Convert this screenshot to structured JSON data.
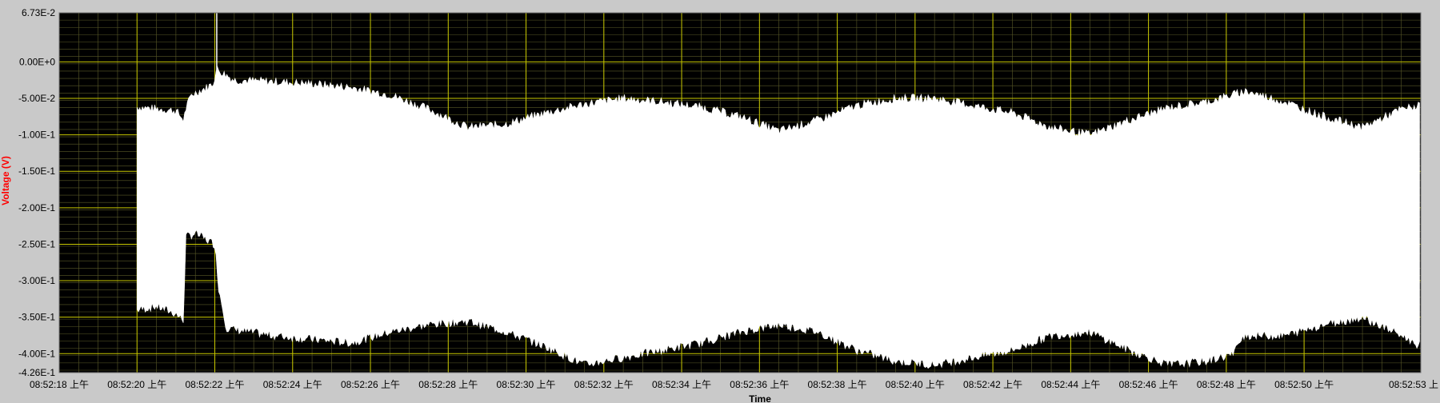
{
  "chart_data": {
    "type": "area",
    "xlabel": "Time",
    "ylabel": "Voltage (V)",
    "xlim": [
      "08:52:18",
      "08:52:53"
    ],
    "ylim": [
      -0.426,
      0.0673
    ],
    "y_min_label": "-4.26E-1",
    "y_max_label": "6.73E-2",
    "y_ticks": [
      {
        "value": 0.0,
        "label": "0.00E+0"
      },
      {
        "value": -0.05,
        "label": "-5.00E-2"
      },
      {
        "value": -0.1,
        "label": "-1.00E-1"
      },
      {
        "value": -0.15,
        "label": "-1.50E-1"
      },
      {
        "value": -0.2,
        "label": "-2.00E-1"
      },
      {
        "value": -0.25,
        "label": "-2.50E-1"
      },
      {
        "value": -0.3,
        "label": "-3.00E-1"
      },
      {
        "value": -0.35,
        "label": "-3.50E-1"
      },
      {
        "value": -0.4,
        "label": "-4.00E-1"
      }
    ],
    "x_ticks": [
      {
        "value": 0,
        "label": "08:52:18 上午"
      },
      {
        "value": 2,
        "label": "08:52:20 上午"
      },
      {
        "value": 4,
        "label": "08:52:22 上午"
      },
      {
        "value": 6,
        "label": "08:52:24 上午"
      },
      {
        "value": 8,
        "label": "08:52:26 上午"
      },
      {
        "value": 10,
        "label": "08:52:28 上午"
      },
      {
        "value": 12,
        "label": "08:52:30 上午"
      },
      {
        "value": 14,
        "label": "08:52:32 上午"
      },
      {
        "value": 16,
        "label": "08:52:34 上午"
      },
      {
        "value": 18,
        "label": "08:52:36 上午"
      },
      {
        "value": 20,
        "label": "08:52:38 上午"
      },
      {
        "value": 22,
        "label": "08:52:40 上午"
      },
      {
        "value": 24,
        "label": "08:52:42 上午"
      },
      {
        "value": 26,
        "label": "08:52:44 上午"
      },
      {
        "value": 28,
        "label": "08:52:46 上午"
      },
      {
        "value": 30,
        "label": "08:52:48 上午"
      },
      {
        "value": 32,
        "label": "08:52:50 上午"
      },
      {
        "value": 35,
        "label": "08:52:53 上"
      }
    ],
    "grid": true,
    "colors": {
      "background": "#000000",
      "trace": "#ffffff",
      "major_grid": "#c8c800",
      "minor_grid": "#5a5a28",
      "axis_title": "#ff0000"
    },
    "series": [
      {
        "values_upper": [
          [
            2.0,
            -0.062
          ],
          [
            3.0,
            -0.067
          ],
          [
            3.2,
            -0.08
          ],
          [
            3.25,
            -0.065
          ],
          [
            3.4,
            -0.045
          ],
          [
            3.8,
            -0.035
          ],
          [
            3.95,
            -0.03
          ],
          [
            4.05,
            -0.01
          ],
          [
            4.5,
            -0.025
          ],
          [
            5.5,
            -0.027
          ],
          [
            6.5,
            -0.03
          ],
          [
            7.5,
            -0.035
          ],
          [
            8.5,
            -0.045
          ],
          [
            9.5,
            -0.065
          ],
          [
            10.5,
            -0.09
          ],
          [
            11.5,
            -0.085
          ],
          [
            12.5,
            -0.07
          ],
          [
            13.5,
            -0.058
          ],
          [
            14.5,
            -0.05
          ],
          [
            15.5,
            -0.055
          ],
          [
            16.5,
            -0.062
          ],
          [
            17.5,
            -0.075
          ],
          [
            18.5,
            -0.095
          ],
          [
            19.5,
            -0.08
          ],
          [
            20.5,
            -0.06
          ],
          [
            21.5,
            -0.05
          ],
          [
            22.5,
            -0.05
          ],
          [
            23.5,
            -0.06
          ],
          [
            24.5,
            -0.07
          ],
          [
            25.5,
            -0.09
          ],
          [
            26.5,
            -0.1
          ],
          [
            27.5,
            -0.08
          ],
          [
            28.5,
            -0.063
          ],
          [
            29.5,
            -0.055
          ],
          [
            30.5,
            -0.04
          ],
          [
            31.5,
            -0.055
          ],
          [
            32.5,
            -0.075
          ],
          [
            33.5,
            -0.09
          ],
          [
            34.5,
            -0.065
          ],
          [
            35.0,
            -0.06
          ]
        ],
        "values_lower": [
          [
            2.0,
            -0.34
          ],
          [
            2.5,
            -0.335
          ],
          [
            3.0,
            -0.345
          ],
          [
            3.2,
            -0.355
          ],
          [
            3.25,
            -0.24
          ],
          [
            3.5,
            -0.235
          ],
          [
            4.0,
            -0.25
          ],
          [
            4.1,
            -0.31
          ],
          [
            4.3,
            -0.365
          ],
          [
            5.5,
            -0.375
          ],
          [
            6.5,
            -0.38
          ],
          [
            7.5,
            -0.385
          ],
          [
            8.5,
            -0.37
          ],
          [
            9.5,
            -0.36
          ],
          [
            10.5,
            -0.355
          ],
          [
            11.5,
            -0.37
          ],
          [
            12.5,
            -0.39
          ],
          [
            13.5,
            -0.415
          ],
          [
            14.5,
            -0.405
          ],
          [
            15.5,
            -0.395
          ],
          [
            16.5,
            -0.385
          ],
          [
            17.5,
            -0.37
          ],
          [
            18.5,
            -0.36
          ],
          [
            19.5,
            -0.37
          ],
          [
            20.5,
            -0.395
          ],
          [
            21.5,
            -0.41
          ],
          [
            22.5,
            -0.415
          ],
          [
            23.5,
            -0.405
          ],
          [
            24.5,
            -0.395
          ],
          [
            25.5,
            -0.375
          ],
          [
            26.5,
            -0.37
          ],
          [
            27.5,
            -0.395
          ],
          [
            28.5,
            -0.415
          ],
          [
            29.5,
            -0.41
          ],
          [
            30.2,
            -0.4
          ],
          [
            30.4,
            -0.375
          ],
          [
            31.5,
            -0.375
          ],
          [
            32.5,
            -0.36
          ],
          [
            33.5,
            -0.35
          ],
          [
            34.5,
            -0.375
          ],
          [
            35.0,
            -0.39
          ]
        ]
      }
    ]
  }
}
